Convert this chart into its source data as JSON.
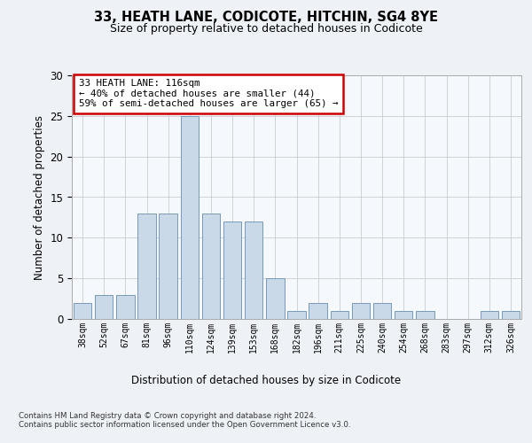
{
  "title1": "33, HEATH LANE, CODICOTE, HITCHIN, SG4 8YE",
  "title2": "Size of property relative to detached houses in Codicote",
  "xlabel": "Distribution of detached houses by size in Codicote",
  "ylabel": "Number of detached properties",
  "categories": [
    "38sqm",
    "52sqm",
    "67sqm",
    "81sqm",
    "96sqm",
    "110sqm",
    "124sqm",
    "139sqm",
    "153sqm",
    "168sqm",
    "182sqm",
    "196sqm",
    "211sqm",
    "225sqm",
    "240sqm",
    "254sqm",
    "268sqm",
    "283sqm",
    "297sqm",
    "312sqm",
    "326sqm"
  ],
  "values": [
    2,
    3,
    3,
    13,
    13,
    25,
    13,
    12,
    12,
    5,
    1,
    2,
    1,
    2,
    2,
    1,
    1,
    0,
    0,
    1,
    1
  ],
  "bar_color": "#c9d9e8",
  "bar_edge_color": "#7799bb",
  "annotation_text": "33 HEATH LANE: 116sqm\n← 40% of detached houses are smaller (44)\n59% of semi-detached houses are larger (65) →",
  "annotation_box_color": "#ffffff",
  "annotation_box_edge_color": "#cc0000",
  "ylim": [
    0,
    30
  ],
  "yticks": [
    0,
    5,
    10,
    15,
    20,
    25,
    30
  ],
  "footer": "Contains HM Land Registry data © Crown copyright and database right 2024.\nContains public sector information licensed under the Open Government Licence v3.0.",
  "bg_color": "#eef2f7",
  "plot_bg_color": "#f5f8fc"
}
